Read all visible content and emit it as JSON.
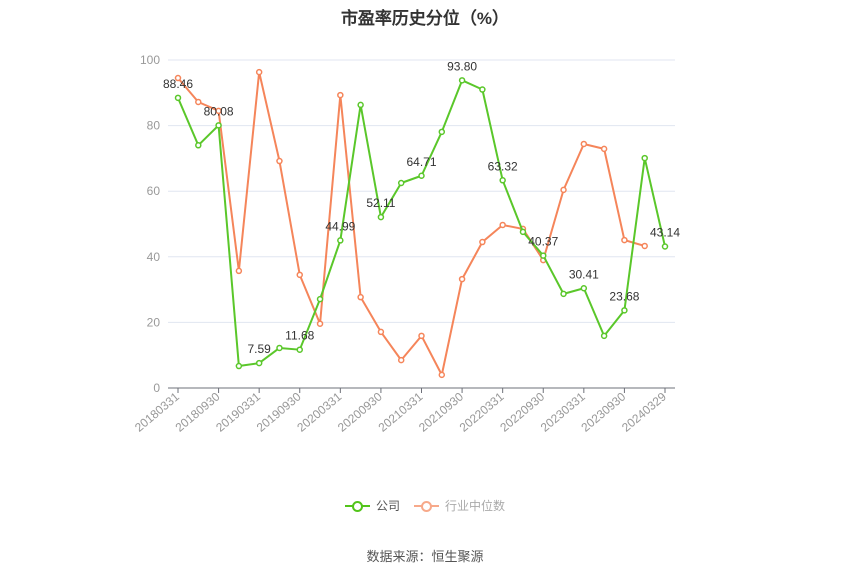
{
  "title": "市盈率历史分位（%）",
  "legend": [
    {
      "label": "公司",
      "color": "#52c41a",
      "text_color": "#555555"
    },
    {
      "label": "行业中位数",
      "color": "#f7a98a",
      "text_color": "#aaaaaa"
    }
  ],
  "source": "数据来源：恒生聚源",
  "colors": {
    "company": "#5ac72a",
    "industry": "#f5855a",
    "grid": "#e0e6f1",
    "axis": "#6e7079"
  },
  "chart_data": {
    "type": "line",
    "title": "市盈率历史分位（%）",
    "xlabel": "",
    "ylabel": "",
    "ylim": [
      0,
      100
    ],
    "yticks": [
      0,
      20,
      40,
      60,
      80,
      100
    ],
    "grid": true,
    "legend_position": "bottom",
    "x": [
      "20180331",
      "20180630",
      "20180930",
      "20181231",
      "20190331",
      "20190630",
      "20190930",
      "20191231",
      "20200331",
      "20200630",
      "20200930",
      "20201231",
      "20210331",
      "20210630",
      "20210930",
      "20211231",
      "20220331",
      "20220630",
      "20220930",
      "20221231",
      "20230331",
      "20230630",
      "20230930",
      "20231231",
      "20240329"
    ],
    "xtick_labels": [
      "20180331",
      "20180930",
      "20190331",
      "20190930",
      "20200331",
      "20200930",
      "20210331",
      "20210930",
      "20220331",
      "20220930",
      "20230331",
      "20230930",
      "20240329"
    ],
    "series": [
      {
        "name": "公司",
        "values": [
          88.46,
          74.0,
          80.08,
          6.7,
          7.59,
          12.2,
          11.68,
          27.1,
          44.99,
          86.3,
          52.11,
          62.5,
          64.71,
          78.1,
          93.8,
          91.0,
          63.32,
          47.6,
          40.37,
          28.7,
          30.41,
          15.9,
          23.68,
          70.1,
          43.14
        ],
        "labeled_points": {
          "0": "88.46",
          "2": "80.08",
          "4": "7.59",
          "6": "11.68",
          "8": "44.99",
          "10": "52.11",
          "12": "64.71",
          "14": "93.80",
          "16": "63.32",
          "18": "40.37",
          "20": "30.41",
          "22": "23.68",
          "24": "43.14"
        }
      },
      {
        "name": "行业中位数",
        "values": [
          94.5,
          87.2,
          84.5,
          35.7,
          96.3,
          69.2,
          34.5,
          19.6,
          89.3,
          27.7,
          17.1,
          8.5,
          15.9,
          4.0,
          33.2,
          44.5,
          49.7,
          48.5,
          39.0,
          60.4,
          74.4,
          72.9,
          45.1,
          43.3,
          null
        ]
      }
    ]
  }
}
